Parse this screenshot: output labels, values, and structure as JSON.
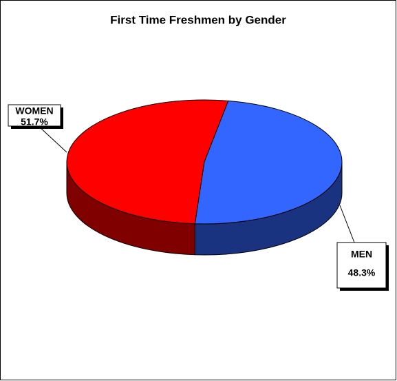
{
  "chart_data": {
    "type": "pie",
    "title": "First Time Freshmen by Gender",
    "categories": [
      "WOMEN",
      "MEN"
    ],
    "values": [
      51.7,
      48.3
    ],
    "value_labels": [
      "51.7%",
      "48.3%"
    ],
    "colors": [
      "#ff0000",
      "#3366ff"
    ]
  }
}
